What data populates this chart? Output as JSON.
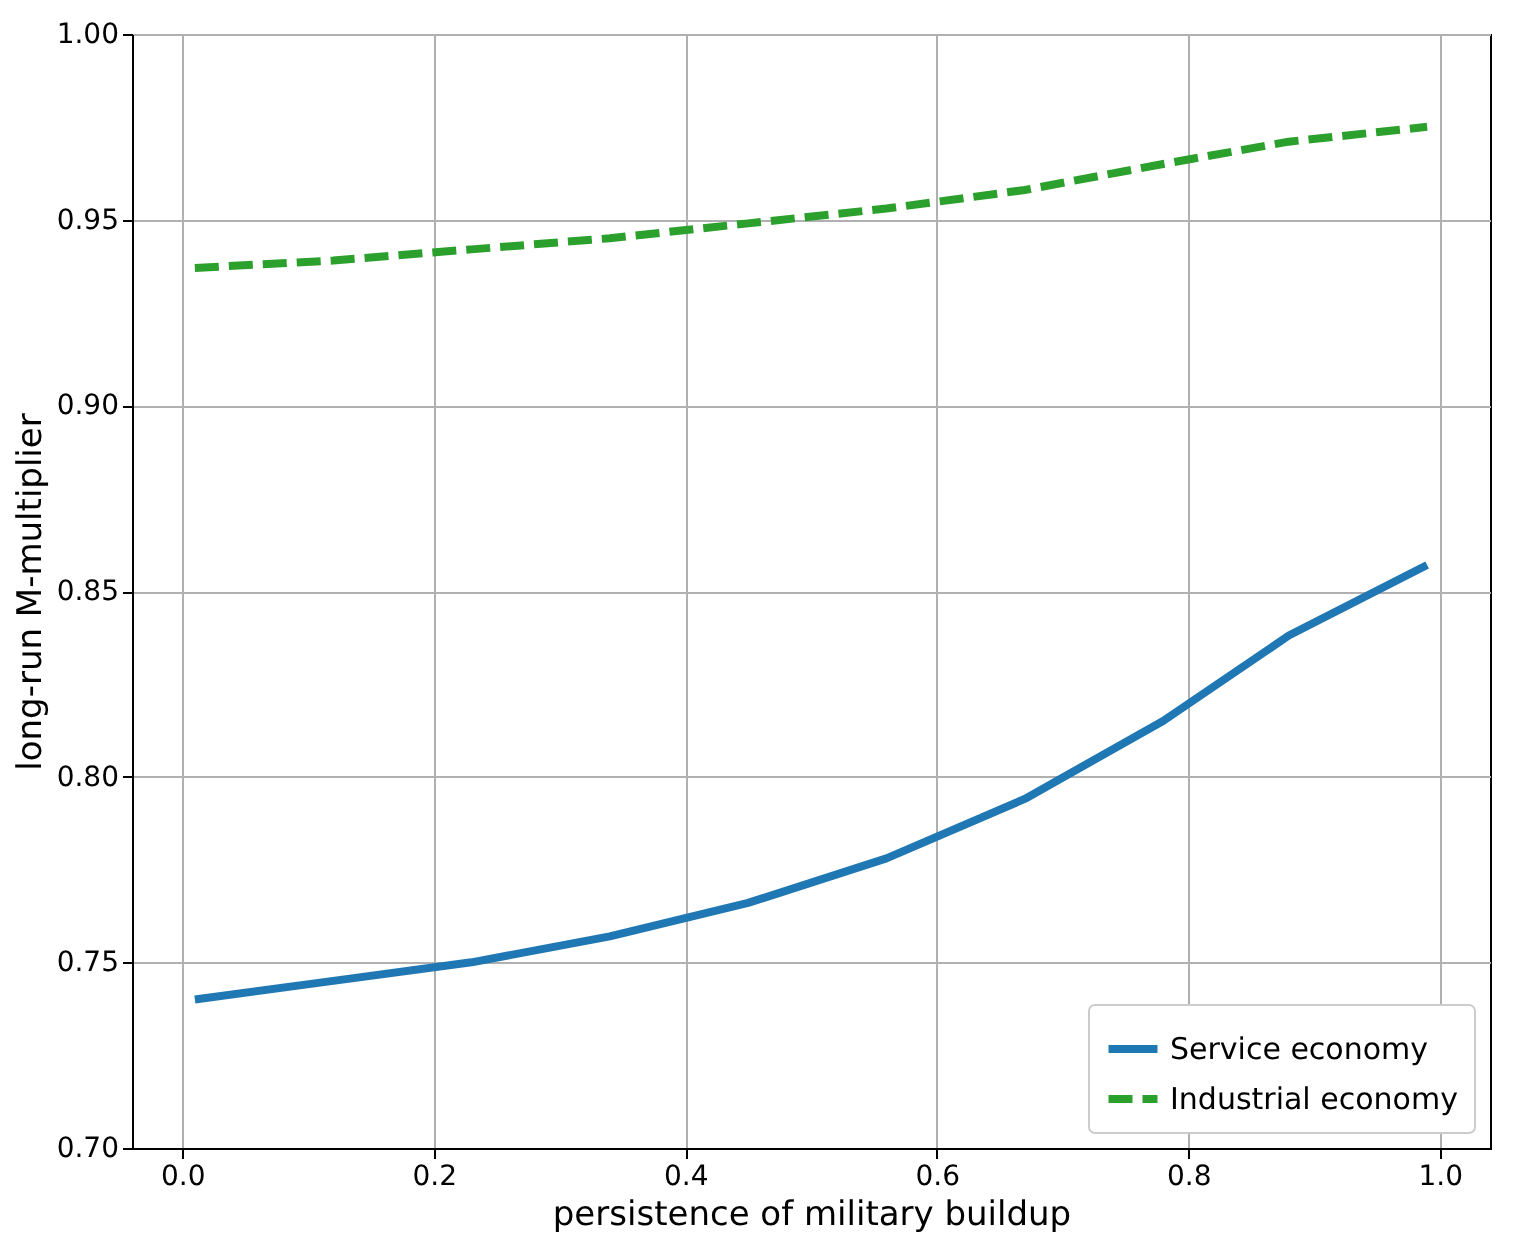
{
  "chart_data": {
    "type": "line",
    "xlabel": "persistence of military buildup",
    "ylabel": "long-run M-multiplier",
    "x": [
      0.01,
      0.12,
      0.23,
      0.34,
      0.45,
      0.56,
      0.67,
      0.78,
      0.88,
      0.99
    ],
    "series": [
      {
        "name": "Service economy",
        "color": "#1f77b4",
        "line_style": "solid",
        "values": [
          0.74,
          0.745,
          0.75,
          0.757,
          0.766,
          0.778,
          0.794,
          0.815,
          0.838,
          0.857
        ]
      },
      {
        "name": "Industrial economy",
        "color": "#2ca02c",
        "line_style": "dashed",
        "values": [
          0.937,
          0.939,
          0.942,
          0.945,
          0.949,
          0.953,
          0.958,
          0.965,
          0.971,
          0.975
        ]
      }
    ],
    "xlim": [
      -0.04,
      1.04
    ],
    "xticks": [
      {
        "value": 0,
        "label": "0.0"
      },
      0.2,
      0.4,
      0.6,
      0.8,
      {
        "value": 1,
        "label": "1.0"
      }
    ],
    "ylim": [
      0.7,
      1.0
    ],
    "yticks": [
      {
        "value": 0.7,
        "label": "0.70"
      },
      0.75,
      {
        "value": 0.8,
        "label": "0.80"
      },
      0.85,
      {
        "value": 0.9,
        "label": "0.90"
      },
      0.95,
      {
        "value": 1.0,
        "label": "1.00"
      }
    ],
    "grid": true,
    "legend": "bottom right"
  }
}
